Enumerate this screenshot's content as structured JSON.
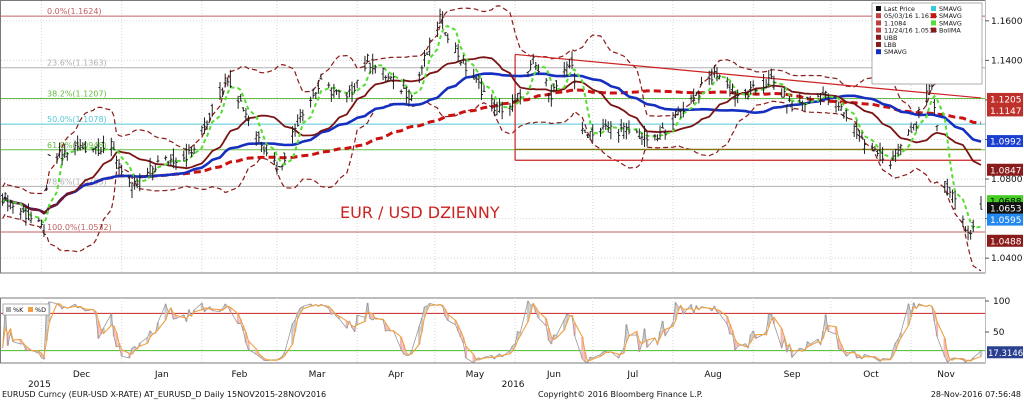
{
  "chart_data": {
    "type": "line",
    "title": "EUR / USD DZIENNY",
    "footer_left": "EURUSD Curncy (EUR-USD X-RATE) AT_EURUSD_D  Daily 15NOV2015-28NOV2016",
    "footer_center": "Copyright© 2016 Bloomberg Finance L.P.",
    "footer_right": "28-Nov-2016 07:56:48",
    "xlim": [
      "2015-11-15",
      "2016-11-28"
    ],
    "ylim": [
      1.0325,
      1.168
    ],
    "y_ticks": [
      1.04,
      1.06,
      1.08,
      1.1,
      1.12,
      1.14,
      1.16
    ],
    "y_tick_labels": [
      "1.0400",
      "1.0600",
      "1.0800",
      "1.1000",
      "1.1200",
      "1.1400",
      "1.1600"
    ],
    "month_labels": [
      {
        "date": "2015-12-01",
        "label": "Dec",
        "year": "2015"
      },
      {
        "date": "2016-01-01",
        "label": "Jan"
      },
      {
        "date": "2016-02-01",
        "label": "Feb"
      },
      {
        "date": "2016-03-01",
        "label": "Mar"
      },
      {
        "date": "2016-04-01",
        "label": "Apr"
      },
      {
        "date": "2016-05-01",
        "label": "May"
      },
      {
        "date": "2016-06-01",
        "label": "Jun",
        "year": "2016"
      },
      {
        "date": "2016-07-01",
        "label": "Jul"
      },
      {
        "date": "2016-08-01",
        "label": "Aug"
      },
      {
        "date": "2016-09-01",
        "label": "Sep"
      },
      {
        "date": "2016-10-01",
        "label": "Oct"
      },
      {
        "date": "2016-11-01",
        "label": "Nov"
      }
    ],
    "fibonacci_levels": [
      {
        "label": "0.0%(1.1624)",
        "value": 1.1624,
        "color": "#c06060"
      },
      {
        "label": "23.6%(1.1363)",
        "value": 1.1363,
        "color": "#b0b0b0"
      },
      {
        "label": "38.2%(1.1207)",
        "value": 1.1207,
        "color": "#66bb44"
      },
      {
        "label": "50.0%(1.1078)",
        "value": 1.1078,
        "color": "#55c8d8"
      },
      {
        "label": "61.8%(1.0948)",
        "value": 1.0948,
        "color": "#66bb44"
      },
      {
        "label": "78.6%(1.0763)",
        "value": 1.0763,
        "color": "#b0b0b0"
      },
      {
        "label": "100.0%(1.0532)",
        "value": 1.0532,
        "color": "#c06060"
      }
    ],
    "legend": [
      {
        "label": "Last Price",
        "color": "#111111"
      },
      {
        "label": "05/03/16 1.1616",
        "color": "#c04040"
      },
      {
        "label": "1.1084",
        "color": "#c04040"
      },
      {
        "label": "11/24/16 1.0518",
        "color": "#c04040"
      },
      {
        "label": "UBB",
        "color": "#8b1a1a"
      },
      {
        "label": "LBB",
        "color": "#8b1a1a"
      },
      {
        "label": "SMAVG",
        "color": "#1530c0"
      },
      {
        "label": "SMAVG",
        "color": "#33ccdd"
      },
      {
        "label": "SMAVG",
        "color": "#cc1111"
      },
      {
        "label": "SMAVG",
        "color": "#55dd33"
      },
      {
        "label": "BollMA",
        "color": "#8b1a1a"
      }
    ],
    "price_badges": [
      {
        "value": 1.1205,
        "label": "1.1205",
        "bg": "#c0302a",
        "fg": "#ffffff"
      },
      {
        "value": 1.1147,
        "label": "1.1147",
        "bg": "#c0302a",
        "fg": "#ffffff"
      },
      {
        "value": 1.0992,
        "label": "1.0992",
        "bg": "#1a3fd0",
        "fg": "#ffffff"
      },
      {
        "value": 1.0847,
        "label": "1.0847",
        "bg": "#8b1a1a",
        "fg": "#ffffff"
      },
      {
        "value": 1.0688,
        "label": "1.0688",
        "bg": "#44cc22",
        "fg": "#000000"
      },
      {
        "value": 1.0653,
        "label": "1.0653",
        "bg": "#111111",
        "fg": "#ffffff"
      },
      {
        "value": 1.0595,
        "label": "1.0595",
        "bg": "#2288ee",
        "fg": "#ffffff"
      },
      {
        "value": 1.0488,
        "label": "1.0488",
        "bg": "#8b1a1a",
        "fg": "#ffffff"
      }
    ],
    "trendlines": [
      {
        "from": [
          "2016-06-01",
          1.143
        ],
        "to": [
          "2016-11-28",
          1.121
        ],
        "color": "#cc2222"
      },
      {
        "from": [
          "2016-06-01",
          1.0895
        ],
        "to": [
          "2016-11-28",
          1.0895
        ],
        "color": "#cc2222"
      },
      {
        "from": [
          "2016-06-01",
          1.0895
        ],
        "to": [
          "2016-06-01",
          1.143
        ],
        "color": "#cc2222"
      },
      {
        "from": [
          "2016-06-01",
          1.095
        ],
        "to": [
          "2016-11-28",
          1.095
        ],
        "color": "#8a7010"
      }
    ],
    "price_anchors": [
      [
        "2015-11-15",
        1.072
      ],
      [
        "2015-11-25",
        1.062
      ],
      [
        "2015-12-02",
        1.054
      ],
      [
        "2015-12-04",
        1.09
      ],
      [
        "2015-12-15",
        1.096
      ],
      [
        "2015-12-28",
        1.096
      ],
      [
        "2016-01-05",
        1.075
      ],
      [
        "2016-01-15",
        1.088
      ],
      [
        "2016-01-28",
        1.093
      ],
      [
        "2016-02-04",
        1.112
      ],
      [
        "2016-02-11",
        1.132
      ],
      [
        "2016-02-22",
        1.103
      ],
      [
        "2016-03-02",
        1.085
      ],
      [
        "2016-03-10",
        1.113
      ],
      [
        "2016-03-18",
        1.128
      ],
      [
        "2016-03-28",
        1.12
      ],
      [
        "2016-04-05",
        1.14
      ],
      [
        "2016-04-15",
        1.129
      ],
      [
        "2016-04-22",
        1.122
      ],
      [
        "2016-05-03",
        1.1616
      ],
      [
        "2016-05-12",
        1.138
      ],
      [
        "2016-05-25",
        1.115
      ],
      [
        "2016-06-01",
        1.118
      ],
      [
        "2016-06-08",
        1.139
      ],
      [
        "2016-06-15",
        1.123
      ],
      [
        "2016-06-23",
        1.139
      ],
      [
        "2016-06-27",
        1.103
      ],
      [
        "2016-07-07",
        1.106
      ],
      [
        "2016-07-18",
        1.103
      ],
      [
        "2016-07-25",
        1.099
      ],
      [
        "2016-08-04",
        1.115
      ],
      [
        "2016-08-18",
        1.134
      ],
      [
        "2016-08-26",
        1.12
      ],
      [
        "2016-09-08",
        1.13
      ],
      [
        "2016-09-16",
        1.116
      ],
      [
        "2016-09-28",
        1.123
      ],
      [
        "2016-10-06",
        1.114
      ],
      [
        "2016-10-14",
        1.098
      ],
      [
        "2016-10-24",
        1.088
      ],
      [
        "2016-11-03",
        1.109
      ],
      [
        "2016-11-09",
        1.128
      ],
      [
        "2016-11-14",
        1.078
      ],
      [
        "2016-11-24",
        1.0518
      ],
      [
        "2016-11-28",
        1.0653
      ]
    ],
    "bollinger_period": 20,
    "bollinger_width": 2,
    "sma_periods": [
      5,
      20,
      50,
      100
    ],
    "oscillator": {
      "legend": [
        {
          "label": "%K",
          "color": "#aaaaaa"
        },
        {
          "label": "%D",
          "color": "#f0a040"
        }
      ],
      "ylim": [
        0,
        100
      ],
      "y_ticks": [
        50,
        100
      ],
      "levels": [
        {
          "value": 80,
          "color": "#cc2222"
        },
        {
          "value": 20,
          "color": "#44bb22"
        }
      ],
      "last_value": 17.3146,
      "last_label": "17.3146"
    }
  }
}
